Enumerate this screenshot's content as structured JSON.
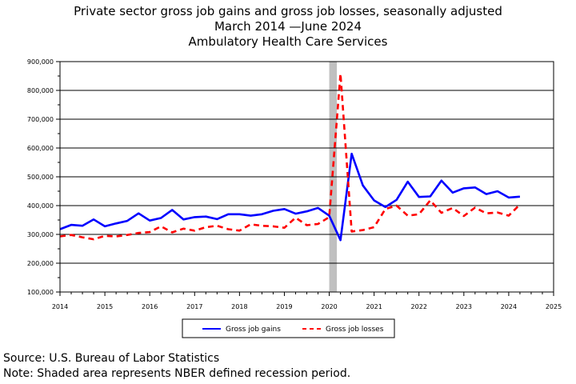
{
  "titles": {
    "line1": "Private sector gross job gains and gross job losses, seasonally adjusted",
    "line2": "March 2014 —June 2024",
    "line3": "Ambulatory Health Care Services"
  },
  "footnotes": {
    "source": "Source: U.S. Bureau of Labor Statistics",
    "note": "Note: Shaded area represents NBER defined recession period."
  },
  "colors": {
    "gains": "#0000ff",
    "losses": "#ff0000",
    "recession": "#c0c0c0",
    "grid": "#000000"
  },
  "chart_data": {
    "type": "line",
    "title": "Private sector gross job gains and gross job losses, seasonally adjusted",
    "xlim": [
      2014,
      2025
    ],
    "ylim": [
      100000,
      900000
    ],
    "x_ticks": [
      "2014",
      "2015",
      "2016",
      "2017",
      "2018",
      "2019",
      "2020",
      "2021",
      "2022",
      "2023",
      "2024",
      "2025"
    ],
    "y_ticks": [
      "100,000",
      "200,000",
      "300,000",
      "400,000",
      "500,000",
      "600,000",
      "700,000",
      "800,000",
      "900,000"
    ],
    "grid": "horizontal",
    "legend_position": "bottom",
    "recession": [
      2020.0,
      2020.17
    ],
    "x": [
      2014.0,
      2014.25,
      2014.5,
      2014.75,
      2015.0,
      2015.25,
      2015.5,
      2015.75,
      2016.0,
      2016.25,
      2016.5,
      2016.75,
      2017.0,
      2017.25,
      2017.5,
      2017.75,
      2018.0,
      2018.25,
      2018.5,
      2018.75,
      2019.0,
      2019.25,
      2019.5,
      2019.75,
      2020.0,
      2020.25,
      2020.5,
      2020.75,
      2021.0,
      2021.25,
      2021.5,
      2021.75,
      2022.0,
      2022.25,
      2022.5,
      2022.75,
      2023.0,
      2023.25,
      2023.5,
      2023.75,
      2024.0,
      2024.25
    ],
    "series": [
      {
        "name": "Gross job gains",
        "style": "solid",
        "values": [
          318000,
          333000,
          330000,
          352000,
          328000,
          338000,
          347000,
          373000,
          348000,
          357000,
          385000,
          352000,
          360000,
          362000,
          353000,
          370000,
          370000,
          365000,
          370000,
          382000,
          388000,
          372000,
          380000,
          392000,
          365000,
          280000,
          580000,
          470000,
          418000,
          395000,
          420000,
          483000,
          430000,
          432000,
          487000,
          445000,
          460000,
          463000,
          440000,
          450000,
          428000,
          431000
        ]
      },
      {
        "name": "Gross job losses",
        "style": "dashed",
        "values": [
          293000,
          298000,
          290000,
          283000,
          295000,
          293000,
          298000,
          305000,
          308000,
          328000,
          307000,
          320000,
          313000,
          325000,
          330000,
          318000,
          313000,
          335000,
          330000,
          328000,
          323000,
          358000,
          332000,
          336000,
          360000,
          858000,
          310000,
          315000,
          325000,
          388000,
          400000,
          365000,
          370000,
          418000,
          375000,
          392000,
          364000,
          393000,
          373000,
          376000,
          365000,
          404000
        ]
      }
    ]
  }
}
